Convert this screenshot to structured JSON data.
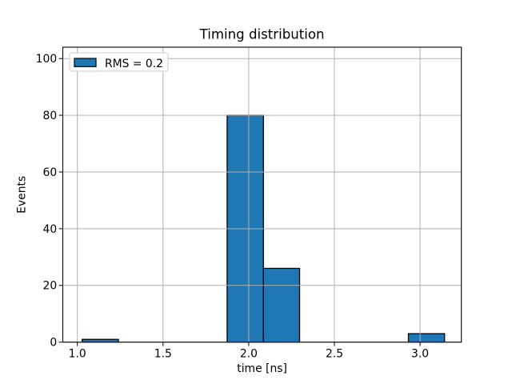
{
  "figure": {
    "background_color": "#ffffff"
  },
  "chart_data": {
    "type": "bar",
    "subtype": "histogram",
    "title": "Timing distribution",
    "xlabel": "time [ns]",
    "ylabel": "Events",
    "legend": {
      "label": "RMS = 0.2",
      "position": "upper left"
    },
    "bin_edges": [
      1.028,
      1.24,
      1.451,
      1.663,
      1.874,
      2.086,
      2.297,
      2.509,
      2.72,
      2.932,
      3.143
    ],
    "counts": [
      1,
      0,
      0,
      0,
      80,
      26,
      0,
      0,
      0,
      3
    ],
    "xlim": [
      0.915,
      3.241
    ],
    "ylim": [
      0,
      104
    ],
    "xticks": [
      1.0,
      1.5,
      2.0,
      2.5,
      3.0
    ],
    "xtick_labels": [
      "1.0",
      "1.5",
      "2.0",
      "2.5",
      "3.0"
    ],
    "yticks": [
      0,
      20,
      40,
      60,
      80,
      100
    ],
    "ytick_labels": [
      "0",
      "20",
      "40",
      "60",
      "80",
      "100"
    ],
    "grid": true,
    "grid_above_bars": true,
    "colors": {
      "bar_fill": "#1f77b4",
      "bar_edge": "#000000",
      "grid": "#b0b0b0",
      "spine": "#000000",
      "tick": "#000000",
      "legend_edge": "#cccccc",
      "legend_face": "#ffffff",
      "background": "#ffffff"
    }
  }
}
